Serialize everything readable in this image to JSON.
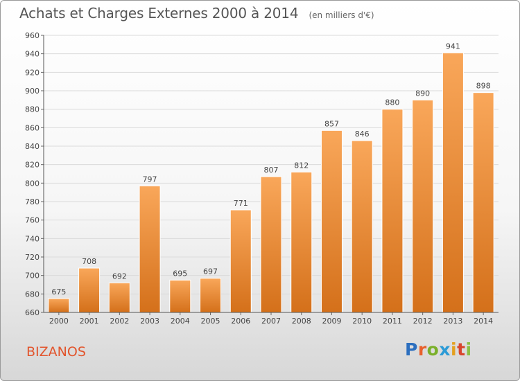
{
  "chart_data": {
    "type": "bar",
    "title": "Achats et Charges Externes 2000 à 2014",
    "subtitle": "(en milliers d'€)",
    "categories": [
      "2000",
      "2001",
      "2002",
      "2003",
      "2004",
      "2005",
      "2006",
      "2007",
      "2008",
      "2009",
      "2010",
      "2011",
      "2012",
      "2013",
      "2014"
    ],
    "values": [
      675,
      708,
      692,
      797,
      695,
      697,
      771,
      807,
      812,
      857,
      846,
      880,
      890,
      941,
      898
    ],
    "ylim": [
      660,
      960
    ],
    "yticks": [
      660,
      680,
      700,
      720,
      740,
      760,
      780,
      800,
      820,
      840,
      860,
      880,
      900,
      920,
      940,
      960
    ],
    "grid": true,
    "bar_color": "#f0912e",
    "xlabel": "",
    "ylabel": ""
  },
  "footer": {
    "town": "BIZANOS",
    "logo": "Proxiti"
  }
}
